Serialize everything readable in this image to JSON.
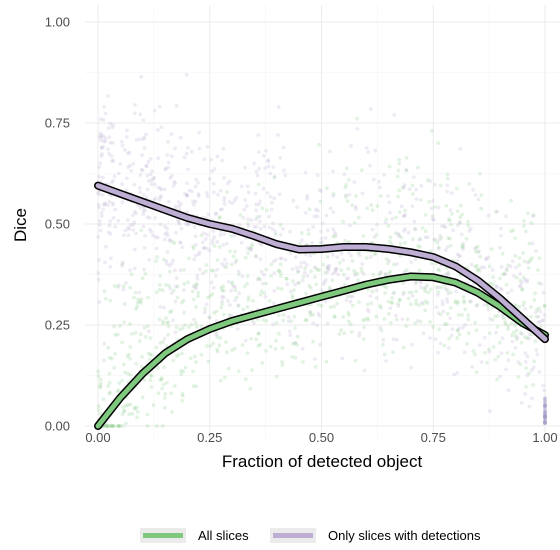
{
  "chart_data": {
    "type": "scatter",
    "title": "",
    "xlabel": "Fraction of detected object",
    "ylabel": "Dice",
    "xlim": [
      0,
      1
    ],
    "ylim": [
      0,
      1
    ],
    "grid": true,
    "legend_position": "bottom",
    "x_ticks": [
      "0.00",
      "0.25",
      "0.50",
      "0.75",
      "1.00"
    ],
    "y_ticks": [
      "0.00",
      "0.25",
      "0.50",
      "0.75",
      "1.00"
    ],
    "series": [
      {
        "name": "All slices",
        "color": "#7fc97f",
        "smooth_line": {
          "x": [
            0.0,
            0.05,
            0.1,
            0.15,
            0.2,
            0.25,
            0.3,
            0.35,
            0.4,
            0.45,
            0.5,
            0.55,
            0.6,
            0.65,
            0.7,
            0.75,
            0.8,
            0.85,
            0.9,
            0.95,
            1.0
          ],
          "y": [
            0.0,
            0.07,
            0.13,
            0.18,
            0.215,
            0.24,
            0.26,
            0.275,
            0.29,
            0.305,
            0.32,
            0.335,
            0.35,
            0.362,
            0.37,
            0.368,
            0.355,
            0.33,
            0.295,
            0.255,
            0.225
          ]
        }
      },
      {
        "name": "Only slices with detections",
        "color": "#beaed4",
        "smooth_line": {
          "x": [
            0.0,
            0.05,
            0.1,
            0.15,
            0.2,
            0.25,
            0.3,
            0.35,
            0.4,
            0.45,
            0.5,
            0.55,
            0.6,
            0.65,
            0.7,
            0.75,
            0.8,
            0.85,
            0.9,
            0.95,
            1.0
          ],
          "y": [
            0.595,
            0.575,
            0.555,
            0.535,
            0.515,
            0.5,
            0.488,
            0.47,
            0.45,
            0.437,
            0.438,
            0.443,
            0.443,
            0.438,
            0.43,
            0.418,
            0.395,
            0.36,
            0.315,
            0.265,
            0.215
          ]
        }
      }
    ]
  }
}
